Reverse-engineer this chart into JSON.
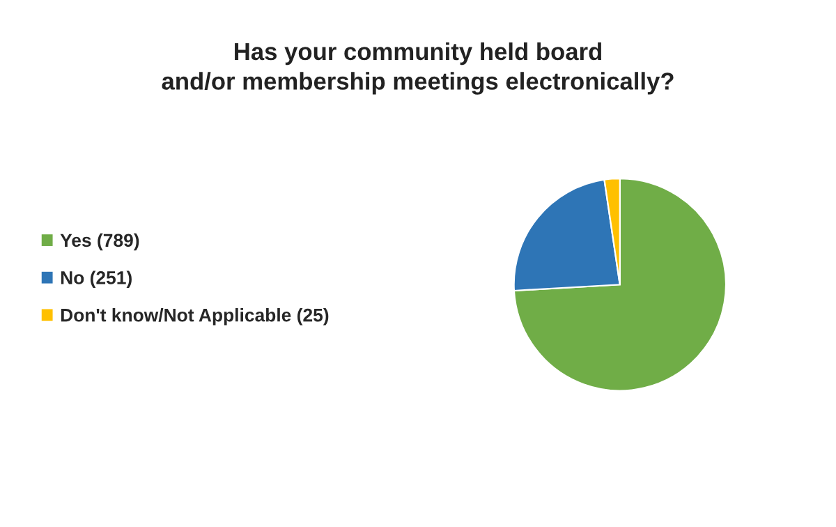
{
  "chart_data": {
    "type": "pie",
    "title": "Has your community held board\nand/or membership meetings electronically?",
    "categories": [
      "Yes (789)",
      "No (251)",
      "Don't know/Not Applicable (25)"
    ],
    "values": [
      789,
      251,
      25
    ],
    "colors": [
      "#70ad47",
      "#2e75b6",
      "#ffc000"
    ],
    "legend": "left"
  }
}
